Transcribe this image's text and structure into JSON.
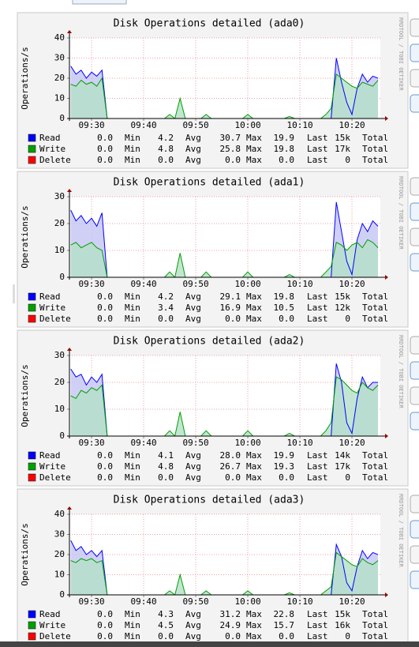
{
  "chart_data": [
    {
      "type": "line",
      "title": "Disk Operations detailed (ada0)",
      "y_label": "Operations/s",
      "watermark": "RRDTOOL / TOBI OETIKER",
      "x": [
        566,
        567,
        568,
        569,
        570,
        571,
        572,
        573,
        574,
        575,
        576,
        577,
        578,
        579,
        580,
        581,
        582,
        583,
        584,
        585,
        586,
        587,
        588,
        589,
        590,
        591,
        592,
        593,
        594,
        595,
        596,
        597,
        598,
        599,
        600,
        601,
        602,
        603,
        604,
        605,
        606,
        607,
        608,
        609,
        610,
        611,
        612,
        613,
        614,
        615,
        616,
        617,
        618,
        619,
        620,
        621,
        622,
        623,
        624,
        625
      ],
      "xlim": [
        565.75,
        625.45
      ],
      "xticks": [
        {
          "value": 570,
          "label": "09:30"
        },
        {
          "value": 580,
          "label": "09:40"
        },
        {
          "value": 590,
          "label": "09:50"
        },
        {
          "value": 600,
          "label": "10:00"
        },
        {
          "value": 610,
          "label": "10:10"
        },
        {
          "value": 620,
          "label": "10:20"
        }
      ],
      "ylim": [
        0,
        40
      ],
      "yticks": [
        0,
        10,
        20,
        30,
        40
      ],
      "grid": true,
      "stat_labels": [
        "Min",
        "Avg",
        "Max",
        "Last",
        "Total"
      ],
      "series": [
        {
          "name": "Read",
          "color": "#0000ff",
          "stats": [
            "0.0",
            "4.2",
            "30.7",
            "19.9",
            "15k"
          ],
          "values": [
            26,
            22,
            24,
            20,
            23,
            21,
            24,
            0,
            0,
            0,
            0,
            0,
            0,
            0,
            0,
            0,
            0,
            0,
            0,
            0,
            0,
            0,
            0,
            0,
            0,
            0,
            0,
            0,
            0,
            0,
            0,
            0,
            0,
            0,
            0,
            0,
            0,
            0,
            0,
            0,
            0,
            0,
            0,
            0,
            0,
            0,
            0,
            0,
            0,
            0,
            0,
            30,
            18,
            8,
            2,
            15,
            22,
            18,
            21,
            20
          ]
        },
        {
          "name": "Write",
          "color": "#00a000",
          "stats": [
            "0.0",
            "4.8",
            "25.8",
            "19.8",
            "17k"
          ],
          "values": [
            17,
            16,
            19,
            17,
            18,
            16,
            20,
            0,
            0,
            0,
            0,
            0,
            0,
            0,
            0,
            0,
            0,
            0,
            0,
            2,
            0,
            10,
            0,
            0,
            0,
            0,
            2,
            0,
            0,
            0,
            0,
            0,
            0,
            0,
            2,
            0,
            0,
            0,
            0,
            0,
            0,
            0,
            1,
            0,
            0,
            0,
            0,
            0,
            0,
            2,
            5,
            22,
            20,
            18,
            16,
            15,
            18,
            17,
            16,
            19
          ]
        },
        {
          "name": "Delete",
          "color": "#ff0000",
          "stats": [
            "0.0",
            "0.0",
            "0.0",
            "0.0",
            "0"
          ]
        }
      ]
    },
    {
      "type": "line",
      "title": "Disk Operations detailed (ada1)",
      "y_label": "Operations/s",
      "watermark": "RRDTOOL / TOBI OETIKER",
      "x": [
        566,
        567,
        568,
        569,
        570,
        571,
        572,
        573,
        574,
        575,
        576,
        577,
        578,
        579,
        580,
        581,
        582,
        583,
        584,
        585,
        586,
        587,
        588,
        589,
        590,
        591,
        592,
        593,
        594,
        595,
        596,
        597,
        598,
        599,
        600,
        601,
        602,
        603,
        604,
        605,
        606,
        607,
        608,
        609,
        610,
        611,
        612,
        613,
        614,
        615,
        616,
        617,
        618,
        619,
        620,
        621,
        622,
        623,
        624,
        625
      ],
      "xlim": [
        565.75,
        625.45
      ],
      "xticks": [
        {
          "value": 570,
          "label": "09:30"
        },
        {
          "value": 580,
          "label": "09:40"
        },
        {
          "value": 590,
          "label": "09:50"
        },
        {
          "value": 600,
          "label": "10:00"
        },
        {
          "value": 610,
          "label": "10:10"
        },
        {
          "value": 620,
          "label": "10:20"
        }
      ],
      "ylim": [
        0,
        30
      ],
      "yticks": [
        0,
        10,
        20,
        30
      ],
      "grid": true,
      "stat_labels": [
        "Min",
        "Avg",
        "Max",
        "Last",
        "Total"
      ],
      "series": [
        {
          "name": "Read",
          "color": "#0000ff",
          "stats": [
            "0.0",
            "4.2",
            "29.1",
            "19.8",
            "15k"
          ],
          "values": [
            25,
            21,
            23,
            20,
            22,
            19,
            24,
            0,
            0,
            0,
            0,
            0,
            0,
            0,
            0,
            0,
            0,
            0,
            0,
            0,
            0,
            0,
            0,
            0,
            0,
            0,
            0,
            0,
            0,
            0,
            0,
            0,
            0,
            0,
            0,
            0,
            0,
            0,
            0,
            0,
            0,
            0,
            0,
            0,
            0,
            0,
            0,
            0,
            0,
            0,
            0,
            28,
            17,
            6,
            1,
            14,
            20,
            17,
            21,
            19
          ]
        },
        {
          "name": "Write",
          "color": "#00a000",
          "stats": [
            "0.0",
            "3.4",
            "16.9",
            "10.5",
            "12k"
          ],
          "values": [
            12,
            13,
            11,
            12,
            13,
            11,
            10,
            0,
            0,
            0,
            0,
            0,
            0,
            0,
            0,
            0,
            0,
            0,
            0,
            2,
            0,
            9,
            0,
            0,
            0,
            0,
            2,
            0,
            0,
            0,
            0,
            0,
            0,
            0,
            2,
            0,
            0,
            0,
            0,
            0,
            0,
            0,
            1,
            0,
            0,
            0,
            0,
            0,
            0,
            2,
            4,
            13,
            12,
            10,
            12,
            13,
            11,
            14,
            13,
            11
          ]
        },
        {
          "name": "Delete",
          "color": "#ff0000",
          "stats": [
            "0.0",
            "0.0",
            "0.0",
            "0.0",
            "0"
          ]
        }
      ]
    },
    {
      "type": "line",
      "title": "Disk Operations detailed (ada2)",
      "y_label": "Operations/s",
      "watermark": "RRDTOOL / TOBI OETIKER",
      "x": [
        566,
        567,
        568,
        569,
        570,
        571,
        572,
        573,
        574,
        575,
        576,
        577,
        578,
        579,
        580,
        581,
        582,
        583,
        584,
        585,
        586,
        587,
        588,
        589,
        590,
        591,
        592,
        593,
        594,
        595,
        596,
        597,
        598,
        599,
        600,
        601,
        602,
        603,
        604,
        605,
        606,
        607,
        608,
        609,
        610,
        611,
        612,
        613,
        614,
        615,
        616,
        617,
        618,
        619,
        620,
        621,
        622,
        623,
        624,
        625
      ],
      "xlim": [
        565.75,
        625.45
      ],
      "xticks": [
        {
          "value": 570,
          "label": "09:30"
        },
        {
          "value": 580,
          "label": "09:40"
        },
        {
          "value": 590,
          "label": "09:50"
        },
        {
          "value": 600,
          "label": "10:00"
        },
        {
          "value": 610,
          "label": "10:10"
        },
        {
          "value": 620,
          "label": "10:20"
        }
      ],
      "ylim": [
        0,
        30
      ],
      "yticks": [
        0,
        10,
        20,
        30
      ],
      "grid": true,
      "stat_labels": [
        "Min",
        "Avg",
        "Max",
        "Last",
        "Total"
      ],
      "series": [
        {
          "name": "Read",
          "color": "#0000ff",
          "stats": [
            "0.0",
            "4.1",
            "28.0",
            "19.9",
            "14k"
          ],
          "values": [
            25,
            22,
            23,
            19,
            22,
            20,
            23,
            0,
            0,
            0,
            0,
            0,
            0,
            0,
            0,
            0,
            0,
            0,
            0,
            0,
            0,
            0,
            0,
            0,
            0,
            0,
            0,
            0,
            0,
            0,
            0,
            0,
            0,
            0,
            0,
            0,
            0,
            0,
            0,
            0,
            0,
            0,
            0,
            0,
            0,
            0,
            0,
            0,
            0,
            0,
            0,
            27,
            20,
            5,
            1,
            14,
            22,
            18,
            20,
            20
          ]
        },
        {
          "name": "Write",
          "color": "#00a000",
          "stats": [
            "0.0",
            "4.8",
            "26.7",
            "19.3",
            "17k"
          ],
          "values": [
            15,
            14,
            17,
            16,
            18,
            17,
            19,
            0,
            0,
            0,
            0,
            0,
            0,
            0,
            0,
            0,
            0,
            0,
            0,
            2,
            0,
            9,
            0,
            0,
            0,
            0,
            2,
            0,
            0,
            0,
            0,
            0,
            0,
            0,
            2,
            0,
            0,
            0,
            0,
            0,
            0,
            0,
            1,
            0,
            0,
            0,
            0,
            0,
            0,
            2,
            5,
            22,
            21,
            19,
            17,
            16,
            20,
            18,
            17,
            19
          ]
        },
        {
          "name": "Delete",
          "color": "#ff0000",
          "stats": [
            "0.0",
            "0.0",
            "0.0",
            "0.0",
            "0"
          ]
        }
      ]
    },
    {
      "type": "line",
      "title": "Disk Operations detailed (ada3)",
      "y_label": "Operations/s",
      "watermark": "RRDTOOL / TOBI OETIKER",
      "x": [
        566,
        567,
        568,
        569,
        570,
        571,
        572,
        573,
        574,
        575,
        576,
        577,
        578,
        579,
        580,
        581,
        582,
        583,
        584,
        585,
        586,
        587,
        588,
        589,
        590,
        591,
        592,
        593,
        594,
        595,
        596,
        597,
        598,
        599,
        600,
        601,
        602,
        603,
        604,
        605,
        606,
        607,
        608,
        609,
        610,
        611,
        612,
        613,
        614,
        615,
        616,
        617,
        618,
        619,
        620,
        621,
        622,
        623,
        624,
        625
      ],
      "xlim": [
        565.75,
        625.45
      ],
      "xticks": [
        {
          "value": 570,
          "label": "09:30"
        },
        {
          "value": 580,
          "label": "09:40"
        },
        {
          "value": 590,
          "label": "09:50"
        },
        {
          "value": 600,
          "label": "10:00"
        },
        {
          "value": 610,
          "label": "10:10"
        },
        {
          "value": 620,
          "label": "10:20"
        }
      ],
      "ylim": [
        0,
        40
      ],
      "yticks": [
        0,
        10,
        20,
        30,
        40
      ],
      "grid": true,
      "stat_labels": [
        "Min",
        "Avg",
        "Max",
        "Last",
        "Total"
      ],
      "series": [
        {
          "name": "Read",
          "color": "#0000ff",
          "stats": [
            "0.0",
            "4.3",
            "31.2",
            "22.8",
            "15k"
          ],
          "values": [
            27,
            22,
            24,
            20,
            22,
            19,
            22,
            0,
            0,
            0,
            0,
            0,
            0,
            0,
            0,
            0,
            0,
            0,
            0,
            0,
            0,
            0,
            0,
            0,
            0,
            0,
            0,
            0,
            0,
            0,
            0,
            0,
            0,
            0,
            0,
            0,
            0,
            0,
            0,
            0,
            0,
            0,
            0,
            0,
            0,
            0,
            0,
            0,
            0,
            0,
            0,
            25,
            19,
            6,
            2,
            14,
            22,
            18,
            21,
            20
          ]
        },
        {
          "name": "Write",
          "color": "#00a000",
          "stats": [
            "0.0",
            "4.5",
            "24.9",
            "15.7",
            "16k"
          ],
          "values": [
            17,
            16,
            18,
            17,
            18,
            16,
            17,
            0,
            0,
            0,
            0,
            0,
            0,
            0,
            0,
            0,
            0,
            0,
            0,
            2,
            0,
            10,
            0,
            0,
            0,
            0,
            2,
            0,
            0,
            0,
            0,
            0,
            0,
            0,
            2,
            0,
            0,
            0,
            0,
            0,
            0,
            0,
            1,
            0,
            0,
            0,
            0,
            0,
            0,
            2,
            4,
            21,
            19,
            17,
            15,
            14,
            18,
            16,
            15,
            17
          ]
        },
        {
          "name": "Delete",
          "color": "#ff0000",
          "stats": [
            "0.0",
            "0.0",
            "0.0",
            "0.0",
            "0"
          ]
        }
      ]
    }
  ]
}
